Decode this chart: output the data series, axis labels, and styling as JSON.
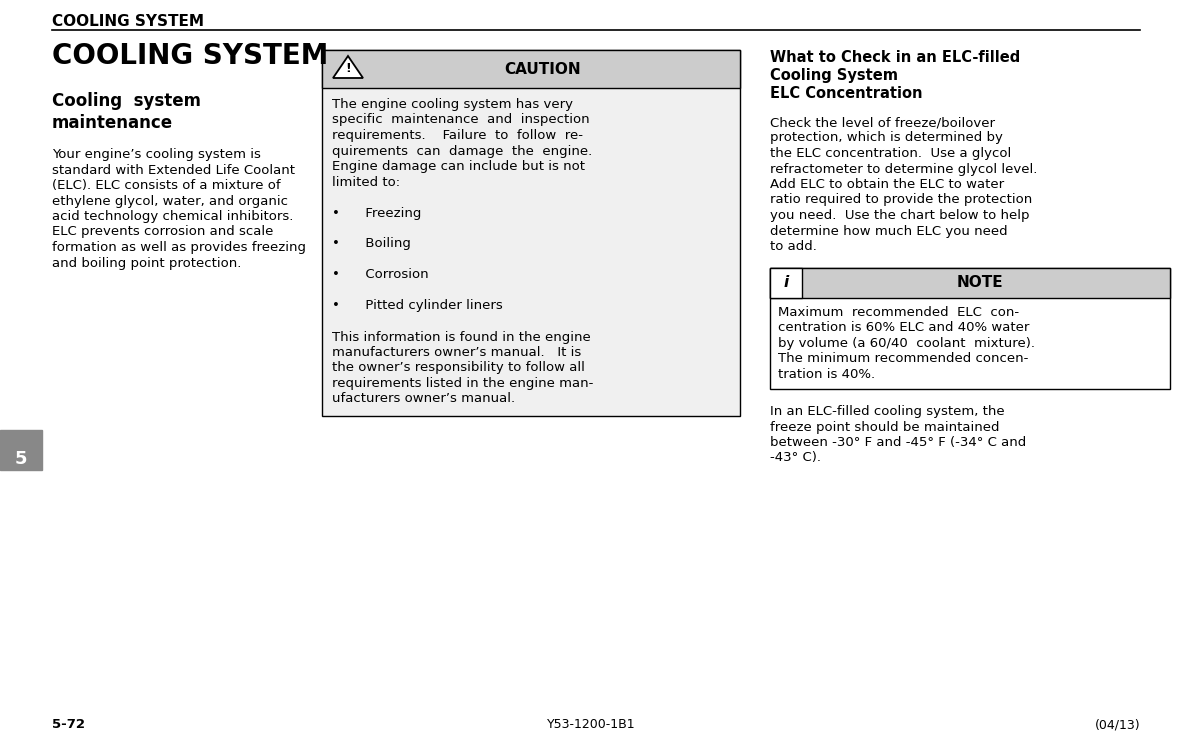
{
  "bg_color": "#ffffff",
  "header_text": "COOLING SYSTEM",
  "title_main": "COOLING SYSTEM",
  "subtitle": "Cooling  system\nmaintenance",
  "left_body": "Your engine’s cooling system is\nstandard with Extended Life Coolant\n(ELC). ELC consists of a mixture of\nethylene glycol, water, and organic\nacid technology chemical inhibitors.\nELC prevents corrosion and scale\nformation as well as provides freezing\nand boiling point protection.",
  "caution_title": "CAUTION",
  "caution_body_lines": [
    "The engine cooling system has very",
    "specific  maintenance  and  inspection",
    "requirements.    Failure  to  follow  re-",
    "quirements  can  damage  the  engine.",
    "Engine damage can include but is not",
    "limited to:",
    "",
    "•      Freezing",
    "",
    "•      Boiling",
    "",
    "•      Corrosion",
    "",
    "•      Pitted cylinder liners",
    "",
    "This information is found in the engine",
    "manufacturers owner’s manual.   It is",
    "the owner’s responsibility to follow all",
    "requirements listed in the engine man-",
    "ufacturers owner’s manual."
  ],
  "right_header_lines": [
    "What to Check in an ELC-filled",
    "Cooling System",
    "ELC Concentration"
  ],
  "right_body1_lines": [
    "Check the level of freeze/boilover",
    "protection, which is determined by",
    "the ELC concentration.  Use a glycol",
    "refractometer to determine glycol level.",
    "Add ELC to obtain the ELC to water",
    "ratio required to provide the protection",
    "you need.  Use the chart below to help",
    "determine how much ELC you need",
    "to add."
  ],
  "note_title": "NOTE",
  "note_body_lines": [
    "Maximum  recommended  ELC  con-",
    "centration is 60% ELC and 40% water",
    "by volume (a 60/40  coolant  mixture).",
    "The minimum recommended concen-",
    "tration is 40%."
  ],
  "right_body2_lines": [
    "In an ELC-filled cooling system, the",
    "freeze point should be maintained",
    "between -30° F and -45° F (-34° C and",
    "-43° C)."
  ],
  "footer_left": "5-72",
  "footer_center": "Y53-1200-1B1",
  "footer_right": "(04/13)",
  "tab_number": "5"
}
